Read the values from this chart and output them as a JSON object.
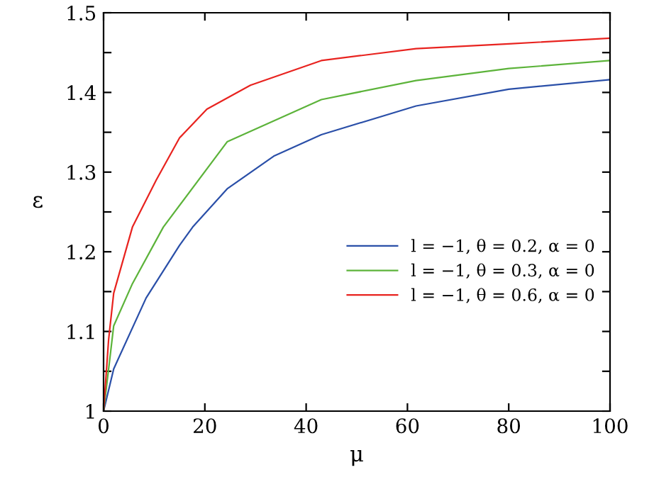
{
  "chart_data": {
    "type": "line",
    "xlabel": "μ",
    "ylabel": "ε",
    "xlim": [
      0,
      100
    ],
    "ylim": [
      1,
      1.5
    ],
    "xticks": [
      0,
      20,
      40,
      60,
      80,
      100
    ],
    "yticks": [
      1,
      {
        "value": 1.05,
        "label": null
      },
      1.1,
      {
        "value": 1.15,
        "label": null
      },
      1.2,
      {
        "value": 1.25,
        "label": null
      },
      1.3,
      {
        "value": 1.35,
        "label": null
      },
      1.4,
      {
        "value": 1.45,
        "label": null
      },
      1.5
    ],
    "grid": false,
    "legend": "right",
    "marker": "none",
    "line_style": "solid",
    "series": [
      {
        "name": "l = −1, θ = 0.2, α = 0",
        "color": "#2a4fa8",
        "x": [
          0,
          2,
          8.4,
          15,
          17.6,
          24.4,
          33.6,
          43,
          61.7,
          80,
          100
        ],
        "values": [
          1,
          1.053,
          1.142,
          1.208,
          1.231,
          1.279,
          1.32,
          1.347,
          1.383,
          1.404,
          1.416
        ]
      },
      {
        "name": "l = −1, θ = 0.3, α = 0",
        "color": "#5cb33a",
        "x": [
          0,
          1,
          2,
          5.7,
          11.8,
          24.4,
          43,
          61.7,
          80,
          100
        ],
        "values": [
          1,
          1.053,
          1.107,
          1.16,
          1.231,
          1.338,
          1.391,
          1.415,
          1.43,
          1.44
        ]
      },
      {
        "name": "l = −1, θ = 0.6, α = 0",
        "color": "#e8231f",
        "x": [
          0,
          1,
          2,
          5.7,
          10.4,
          15,
          20.4,
          29,
          43,
          61.7,
          80,
          100
        ],
        "values": [
          1,
          1.09,
          1.148,
          1.231,
          1.29,
          1.343,
          1.379,
          1.409,
          1.44,
          1.455,
          1.461,
          1.468
        ]
      }
    ]
  }
}
